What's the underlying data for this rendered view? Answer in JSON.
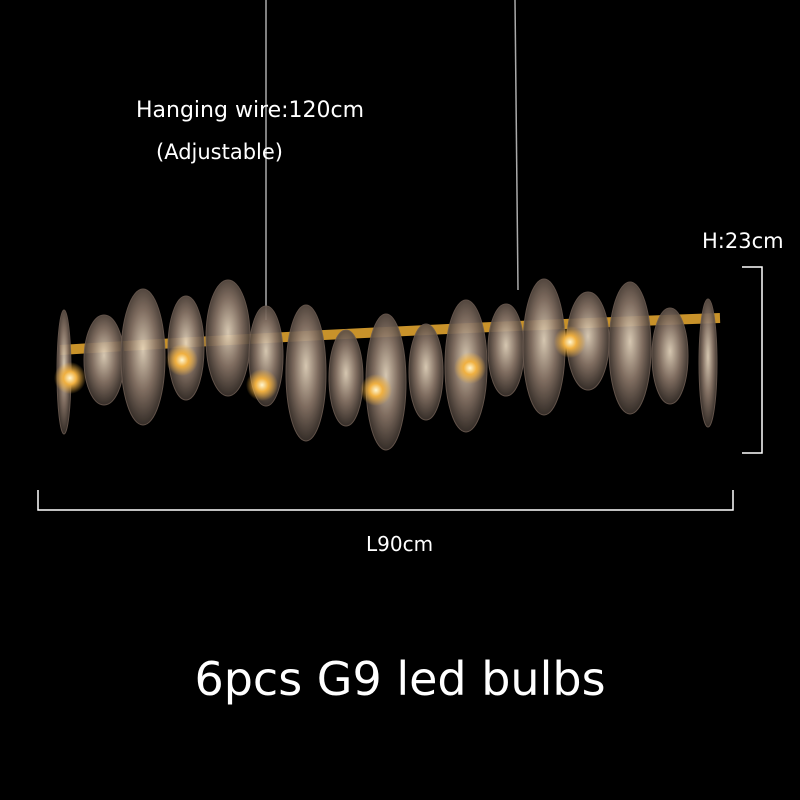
{
  "annotations": {
    "hanging_wire": "Hanging wire:120cm",
    "adjustable": "(Adjustable)",
    "height": "H:23cm",
    "length": "L90cm",
    "bulbs": "6pcs G9 led bulbs"
  },
  "colors": {
    "background": "#000000",
    "gold": "#c8922a",
    "crystal": "#8a7f78",
    "text": "#ffffff"
  }
}
